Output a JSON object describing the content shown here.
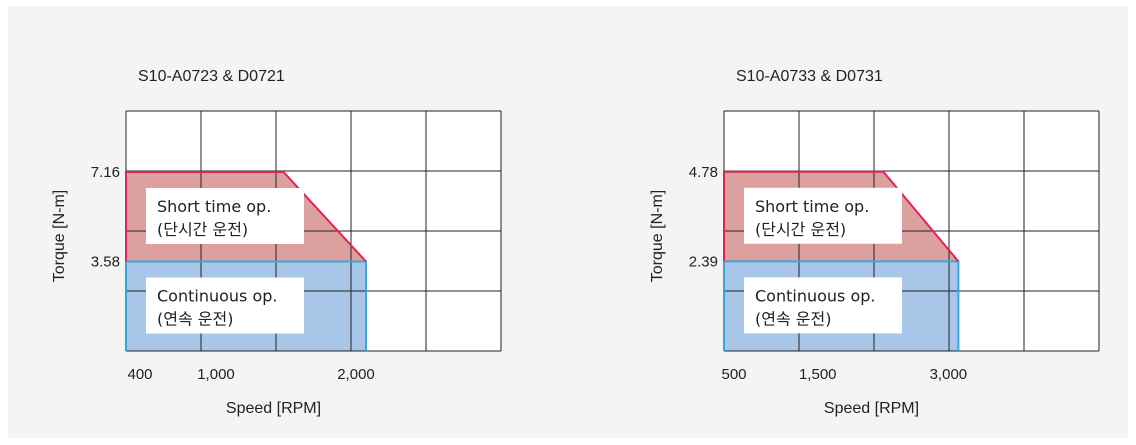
{
  "chart_data": [
    {
      "type": "area",
      "title": "S10-A0723 & D0721",
      "xlabel": "Speed [RPM]",
      "ylabel": "Torque [N-m]",
      "x_ticks": [
        {
          "value": 400,
          "label": "400"
        },
        {
          "value": 1000,
          "label": "1,000"
        },
        {
          "value": 2000,
          "label": "2,000"
        }
      ],
      "y_ticks": [
        {
          "value": 3.58,
          "label": "3.58"
        },
        {
          "value": 7.16,
          "label": "7.16"
        }
      ],
      "xlim": [
        400,
        2900
      ],
      "ylim": [
        0,
        9.6
      ],
      "grid": true,
      "regions": [
        {
          "name": "continuous",
          "labels": [
            "Continuous op.",
            "(연속 운전)"
          ],
          "fill": "#a7c6e8",
          "edge": "#3aa6dc",
          "points": [
            [
              400,
              0
            ],
            [
              400,
              3.58
            ],
            [
              2000,
              3.58
            ],
            [
              2000,
              0
            ]
          ]
        },
        {
          "name": "short",
          "labels": [
            "Short time op.",
            "(단시간 운전)"
          ],
          "fill": "#dca09e",
          "edge": "#e0245a",
          "points": [
            [
              400,
              3.58
            ],
            [
              400,
              7.16
            ],
            [
              1450,
              7.16
            ],
            [
              2000,
              3.58
            ]
          ]
        }
      ]
    },
    {
      "type": "area",
      "title": "S10-A0733 & D0731",
      "xlabel": "Speed [RPM]",
      "ylabel": "Torque [N-m]",
      "x_ticks": [
        {
          "value": 500,
          "label": "500"
        },
        {
          "value": 1500,
          "label": "1,500"
        },
        {
          "value": 3000,
          "label": "3,000"
        }
      ],
      "y_ticks": [
        {
          "value": 2.39,
          "label": "2.39"
        },
        {
          "value": 4.78,
          "label": "4.78"
        }
      ],
      "xlim": [
        500,
        4500
      ],
      "ylim": [
        0,
        6.4
      ],
      "grid": true,
      "regions": [
        {
          "name": "continuous",
          "labels": [
            "Continuous op.",
            "(연속 운전)"
          ],
          "fill": "#a7c6e8",
          "edge": "#3aa6dc",
          "points": [
            [
              500,
              0
            ],
            [
              500,
              2.39
            ],
            [
              3000,
              2.39
            ],
            [
              3000,
              0
            ]
          ]
        },
        {
          "name": "short",
          "labels": [
            "Short time op.",
            "(단시간 운전)"
          ],
          "fill": "#dca09e",
          "edge": "#e0245a",
          "points": [
            [
              500,
              2.39
            ],
            [
              500,
              4.78
            ],
            [
              2200,
              4.78
            ],
            [
              3000,
              2.39
            ]
          ]
        }
      ]
    }
  ]
}
